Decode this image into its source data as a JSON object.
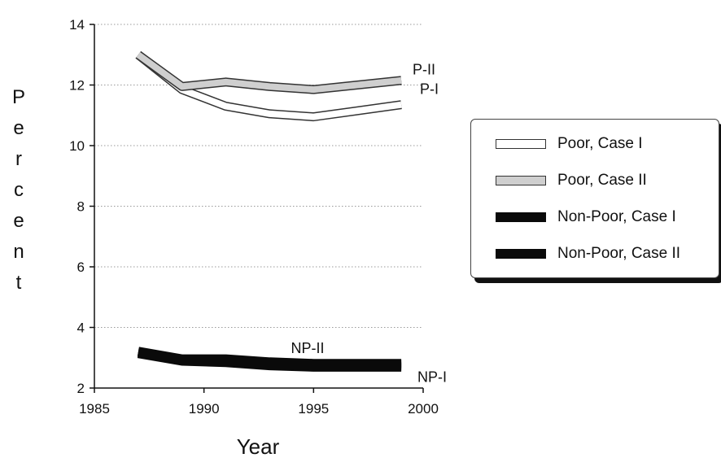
{
  "chart_data": {
    "type": "line",
    "xlabel": "Year",
    "ylabel": "Percent",
    "xlim": [
      1985,
      2000
    ],
    "ylim": [
      2,
      14
    ],
    "xticks": [
      "1985",
      "1990",
      "1995",
      "2000"
    ],
    "yticks": [
      "2",
      "4",
      "6",
      "8",
      "10",
      "12",
      "14"
    ],
    "grid": "horizontal dotted",
    "legend_position": "right",
    "series": [
      {
        "name": "Poor, Case I",
        "label": "P-I",
        "style": "white band with dark outline",
        "x": [
          1987,
          1989,
          1991,
          1993,
          1995,
          1997,
          1999
        ],
        "values": [
          13.0,
          11.85,
          11.3,
          11.05,
          10.95,
          11.15,
          11.35
        ]
      },
      {
        "name": "Poor, Case II",
        "label": "P-II",
        "style": "light gray band with dark outline",
        "x": [
          1987,
          1989,
          1991,
          1993,
          1995,
          1997,
          1999
        ],
        "values": [
          13.0,
          11.95,
          12.1,
          11.95,
          11.85,
          12.0,
          12.15
        ]
      },
      {
        "name": "Non-Poor, Case I",
        "label": "NP-I",
        "style": "solid black band",
        "x": [
          1987,
          1989,
          1991,
          1993,
          1995,
          1997,
          1999
        ],
        "values": [
          3.15,
          2.9,
          2.85,
          2.75,
          2.7,
          2.7,
          2.7
        ]
      },
      {
        "name": "Non-Poor, Case II",
        "label": "NP-II",
        "style": "solid black band",
        "x": [
          1987,
          1989,
          1991,
          1993,
          1995,
          1997,
          1999
        ],
        "values": [
          3.2,
          2.95,
          2.95,
          2.85,
          2.8,
          2.8,
          2.8
        ]
      }
    ]
  },
  "colors": {
    "poor_case_i": "#ffffff",
    "poor_case_ii": "#cfcfcf",
    "non_poor": "#0a0a0a",
    "outline": "#333333",
    "grid": "#9a9a9a"
  }
}
